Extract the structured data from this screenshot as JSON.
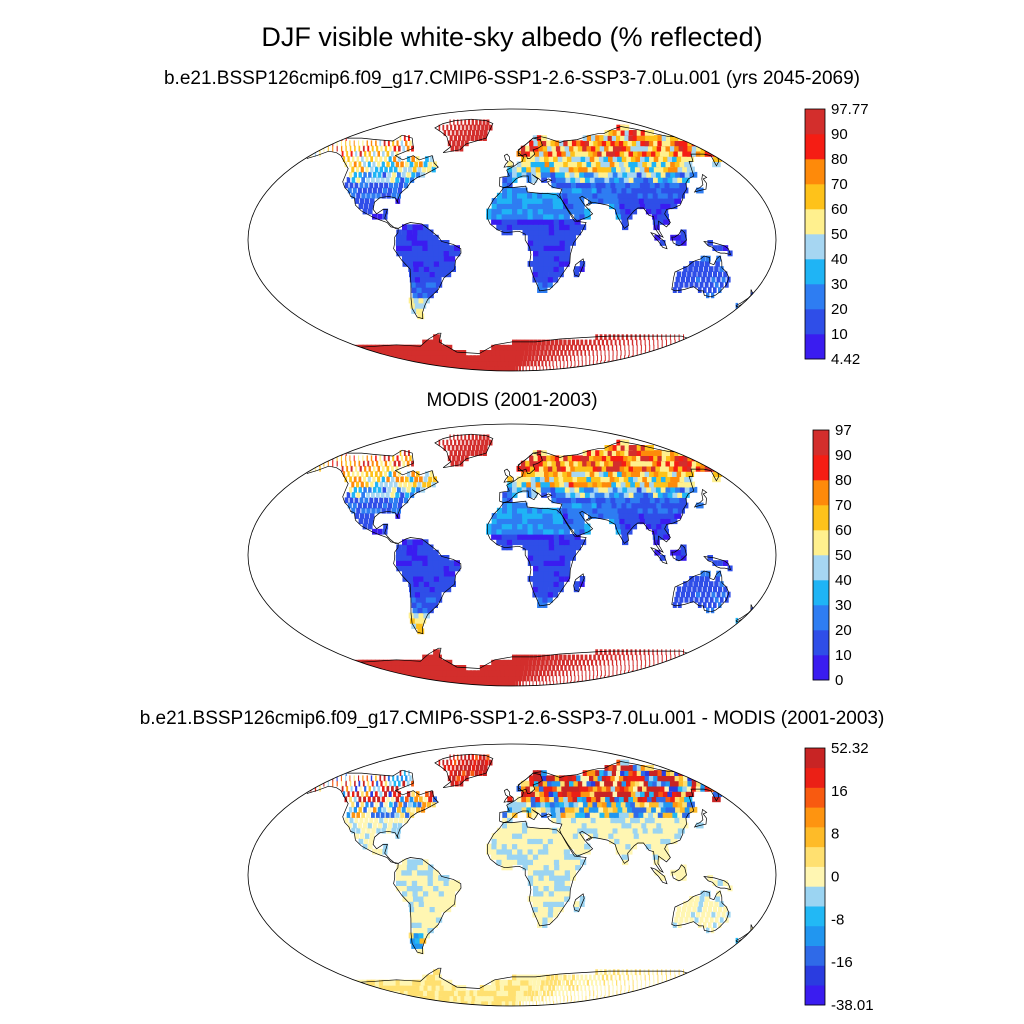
{
  "title": "DJF visible white-sky albedo (% reflected)",
  "colors": {
    "seq": [
      "#3a1cf0",
      "#2f4ee8",
      "#2e7df2",
      "#1fb4f5",
      "#a6d6f2",
      "#fff08e",
      "#fec21a",
      "#fe8a0a",
      "#f51d14",
      "#d32e2c"
    ],
    "diff": [
      "#3a1cf0",
      "#2a3ce0",
      "#2f6ae8",
      "#2196f0",
      "#22b8f5",
      "#9bd4f2",
      "#fff6b2",
      "#ffe070",
      "#febb28",
      "#fe9410",
      "#f85a10",
      "#eb2016",
      "#c82424"
    ],
    "ocean": "#ffffff",
    "coast": "#000000"
  },
  "panels": [
    {
      "id": "model",
      "title": "b.e21.BSSP126cmip6.f09_g17.CMIP6-SSP1-2.6-SSP3-7.0Lu.001 (yrs 2045-2069)",
      "colorbar": {
        "labels": [
          "97.77",
          "90",
          "80",
          "70",
          "60",
          "50",
          "40",
          "30",
          "20",
          "10",
          "4.42"
        ]
      }
    },
    {
      "id": "modis",
      "title": "MODIS (2001-2003)",
      "colorbar": {
        "labels": [
          "97",
          "90",
          "80",
          "70",
          "60",
          "50",
          "40",
          "30",
          "20",
          "10",
          "0"
        ]
      }
    },
    {
      "id": "difference",
      "title": "b.e21.BSSP126cmip6.f09_g17.CMIP6-SSP1-2.6-SSP3-7.0Lu.001 - MODIS (2001-2003)",
      "colorbar": {
        "labels": [
          "52.32",
          "",
          "16",
          "",
          "8",
          "",
          "0",
          "",
          "-8",
          "",
          "-16",
          "",
          "-38.01"
        ]
      }
    }
  ]
}
